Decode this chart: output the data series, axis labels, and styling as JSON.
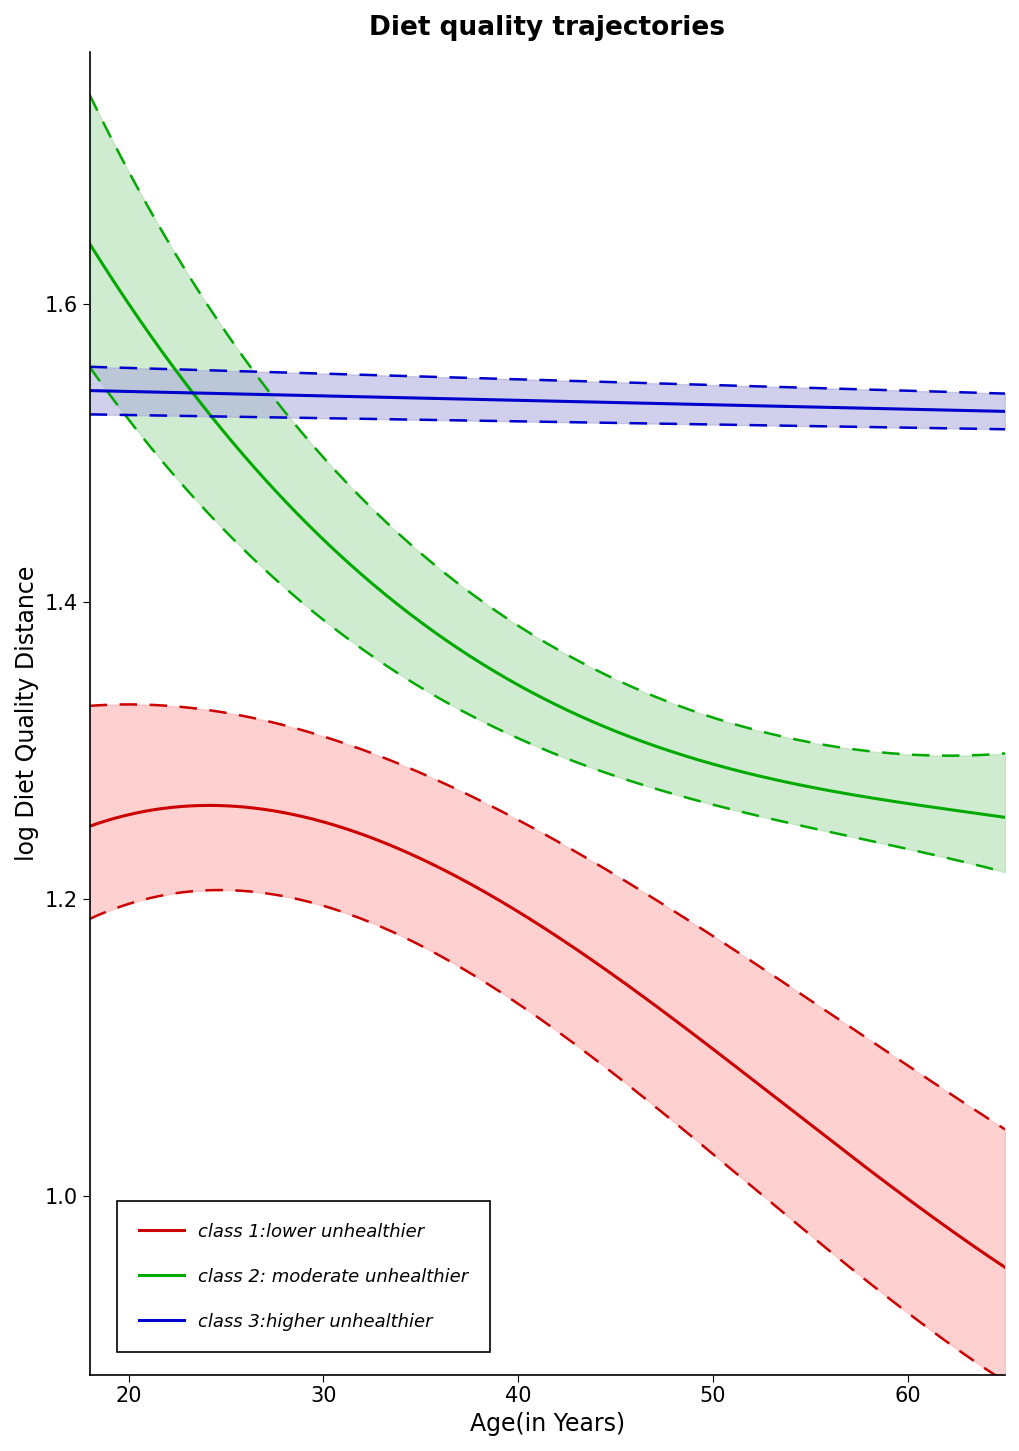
{
  "title": "Diet quality trajectories",
  "xlabel": "Age(in Years)",
  "ylabel": "log Diet Quality Distance",
  "x_min": 18,
  "x_max": 65,
  "y_min": 0.88,
  "y_max": 1.77,
  "yticks": [
    1.0,
    1.2,
    1.4,
    1.6
  ],
  "xticks": [
    20,
    30,
    40,
    50,
    60
  ],
  "background_color": "#FFFFFF",
  "figsize": [
    10.2,
    14.51
  ],
  "dpi": 100,
  "class1_color": "#CC0000",
  "class1_fill": "#FFAAAA",
  "class2_color": "#00AA00",
  "class2_fill": "#AADDAA",
  "class3_color": "#0000CC",
  "class3_fill": "#AAAADD",
  "legend_labels": [
    "class 1:lower unhealthier",
    "class 2: moderate unhealthier",
    "class 3:higher unhealthier"
  ]
}
